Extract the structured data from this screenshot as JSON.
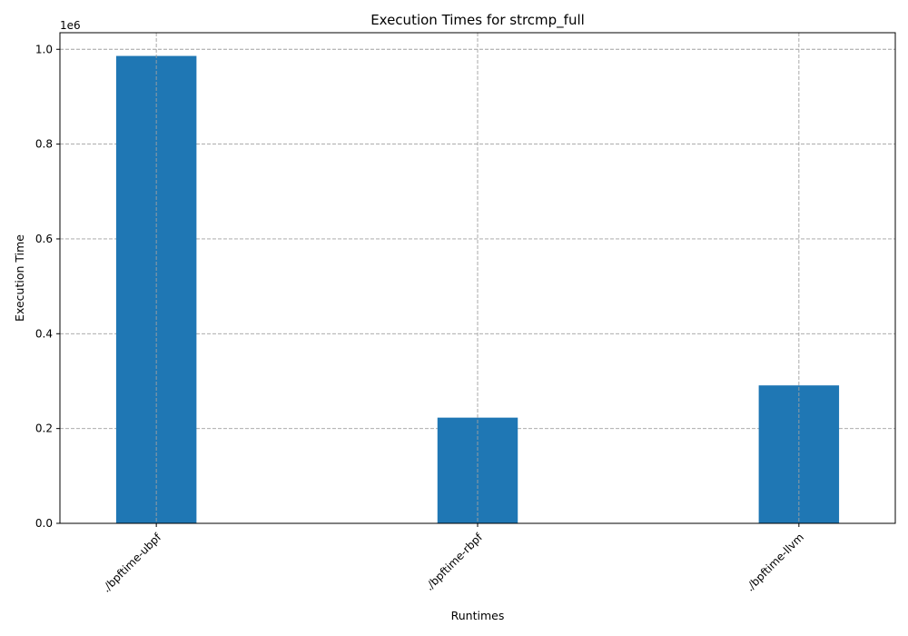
{
  "chart_data": {
    "type": "bar",
    "title": "Execution Times for strcmp_full",
    "xlabel": "Runtimes",
    "ylabel": "Execution Time",
    "offset_label": "1e6",
    "categories": [
      "./bpftime-ubpf",
      "./bpftime-rbpf",
      "./bpftime-llvm"
    ],
    "values": [
      986000,
      223000,
      291000
    ],
    "ylim": [
      0,
      1035000
    ],
    "yticks": [
      0,
      200000,
      400000,
      600000,
      800000,
      1000000
    ],
    "ytick_labels": [
      "0.0",
      "0.2",
      "0.4",
      "0.6",
      "0.8",
      "1.0"
    ],
    "grid": true,
    "bar_color": "#1f77b4",
    "grid_color": "#a0a0a0"
  }
}
